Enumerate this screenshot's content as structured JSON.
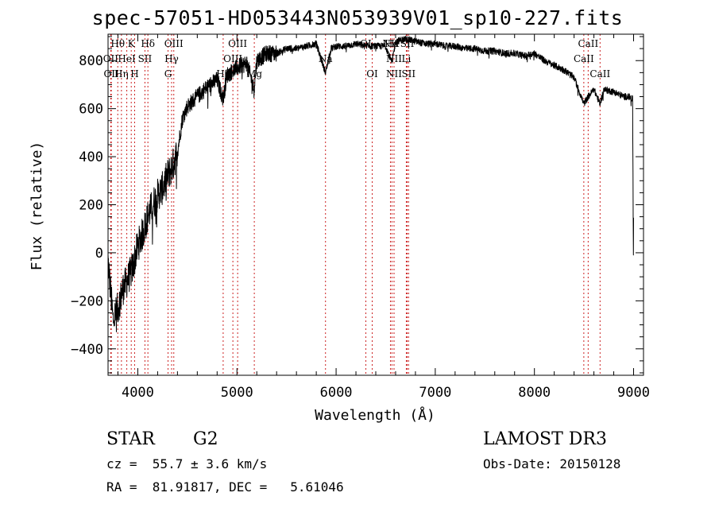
{
  "chart_data": {
    "type": "line",
    "title": "spec-57051-HD053443N053939V01_sp10-227.fits",
    "xlabel": "Wavelength (Å)",
    "ylabel": "Flux (relative)",
    "xlim": [
      3700,
      9100
    ],
    "ylim": [
      -510,
      910
    ],
    "xticks": [
      4000,
      5000,
      6000,
      7000,
      8000,
      9000
    ],
    "xtick_labels": [
      "4000",
      "5000",
      "6000",
      "7000",
      "8000",
      "9000"
    ],
    "yticks": [
      -400,
      -200,
      0,
      200,
      400,
      600,
      800
    ],
    "ytick_labels": [
      "−400",
      "−200",
      "0",
      "200",
      "400",
      "600",
      "800"
    ],
    "series": [
      {
        "name": "flux",
        "x": [
          3700,
          3750,
          3800,
          3850,
          3900,
          3950,
          4000,
          4050,
          4100,
          4150,
          4200,
          4250,
          4300,
          4350,
          4400,
          4450,
          4500,
          4600,
          4700,
          4800,
          4861,
          4900,
          5000,
          5100,
          5172,
          5200,
          5300,
          5400,
          5500,
          5600,
          5700,
          5800,
          5893,
          5950,
          6000,
          6100,
          6200,
          6300,
          6400,
          6500,
          6563,
          6600,
          6700,
          6800,
          6900,
          7000,
          7100,
          7200,
          7300,
          7400,
          7500,
          7600,
          7700,
          7800,
          7900,
          8000,
          8100,
          8200,
          8300,
          8400,
          8498,
          8542,
          8600,
          8662,
          8700,
          8800,
          8900,
          8950,
          8990,
          8998,
          9000
        ],
        "y": [
          -30,
          -280,
          -230,
          -150,
          -110,
          -60,
          30,
          80,
          150,
          200,
          240,
          270,
          320,
          360,
          420,
          560,
          610,
          650,
          690,
          720,
          640,
          740,
          770,
          790,
          680,
          800,
          830,
          830,
          850,
          850,
          860,
          870,
          750,
          850,
          860,
          860,
          870,
          860,
          860,
          860,
          790,
          880,
          890,
          880,
          870,
          870,
          860,
          860,
          850,
          850,
          840,
          840,
          830,
          830,
          820,
          830,
          800,
          780,
          760,
          730,
          620,
          650,
          680,
          620,
          680,
          670,
          650,
          650,
          640,
          0,
          140
        ]
      }
    ],
    "line_markers": [
      {
        "label": "Hθ",
        "x": 3798,
        "row": 0
      },
      {
        "label": "OII",
        "x": 3727,
        "row": 1
      },
      {
        "label": "OII",
        "x": 3733,
        "row": 2
      },
      {
        "label": "Hη",
        "x": 3835,
        "row": 2
      },
      {
        "label": "K",
        "x": 3934,
        "row": 0
      },
      {
        "label": "H",
        "x": 3968,
        "row": 2
      },
      {
        "label": "HeI",
        "x": 3889,
        "row": 1
      },
      {
        "label": "SII",
        "x": 4072,
        "row": 1
      },
      {
        "label": "Hδ",
        "x": 4102,
        "row": 0
      },
      {
        "label": "OIII",
        "x": 4363,
        "row": 0
      },
      {
        "label": "Hγ",
        "x": 4341,
        "row": 1
      },
      {
        "label": "G",
        "x": 4305,
        "row": 2
      },
      {
        "label": "OIII",
        "x": 5007,
        "row": 0
      },
      {
        "label": "OIII",
        "x": 4959,
        "row": 1
      },
      {
        "label": "Hβ",
        "x": 4861,
        "row": 2
      },
      {
        "label": "Mg",
        "x": 5175,
        "row": 2
      },
      {
        "label": "Na",
        "x": 5893,
        "row": 1
      },
      {
        "label": "OI",
        "x": 6300,
        "row": 0
      },
      {
        "label": "OI",
        "x": 6364,
        "row": 2
      },
      {
        "label": "NII",
        "x": 6548,
        "row": 0
      },
      {
        "label": "Hα",
        "x": 6563,
        "row": 0
      },
      {
        "label": "NII",
        "x": 6584,
        "row": 1
      },
      {
        "label": "SII",
        "x": 6717,
        "row": 0
      },
      {
        "label": "Li",
        "x": 6708,
        "row": 1
      },
      {
        "label": "NII",
        "x": 6584,
        "row": 2
      },
      {
        "label": "SII",
        "x": 6731,
        "row": 2
      },
      {
        "label": "CaII",
        "x": 8542,
        "row": 0
      },
      {
        "label": "CaII",
        "x": 8498,
        "row": 1
      },
      {
        "label": "CaII",
        "x": 8662,
        "row": 2
      }
    ]
  },
  "info": {
    "object_class": "STAR",
    "subclass": "G2",
    "survey": "LAMOST DR3",
    "redshift": "cz =  55.7 ± 3.6 km/s",
    "obs_date": "Obs-Date: 20150128",
    "coords": "RA =  81.91817, DEC =   5.61046"
  }
}
